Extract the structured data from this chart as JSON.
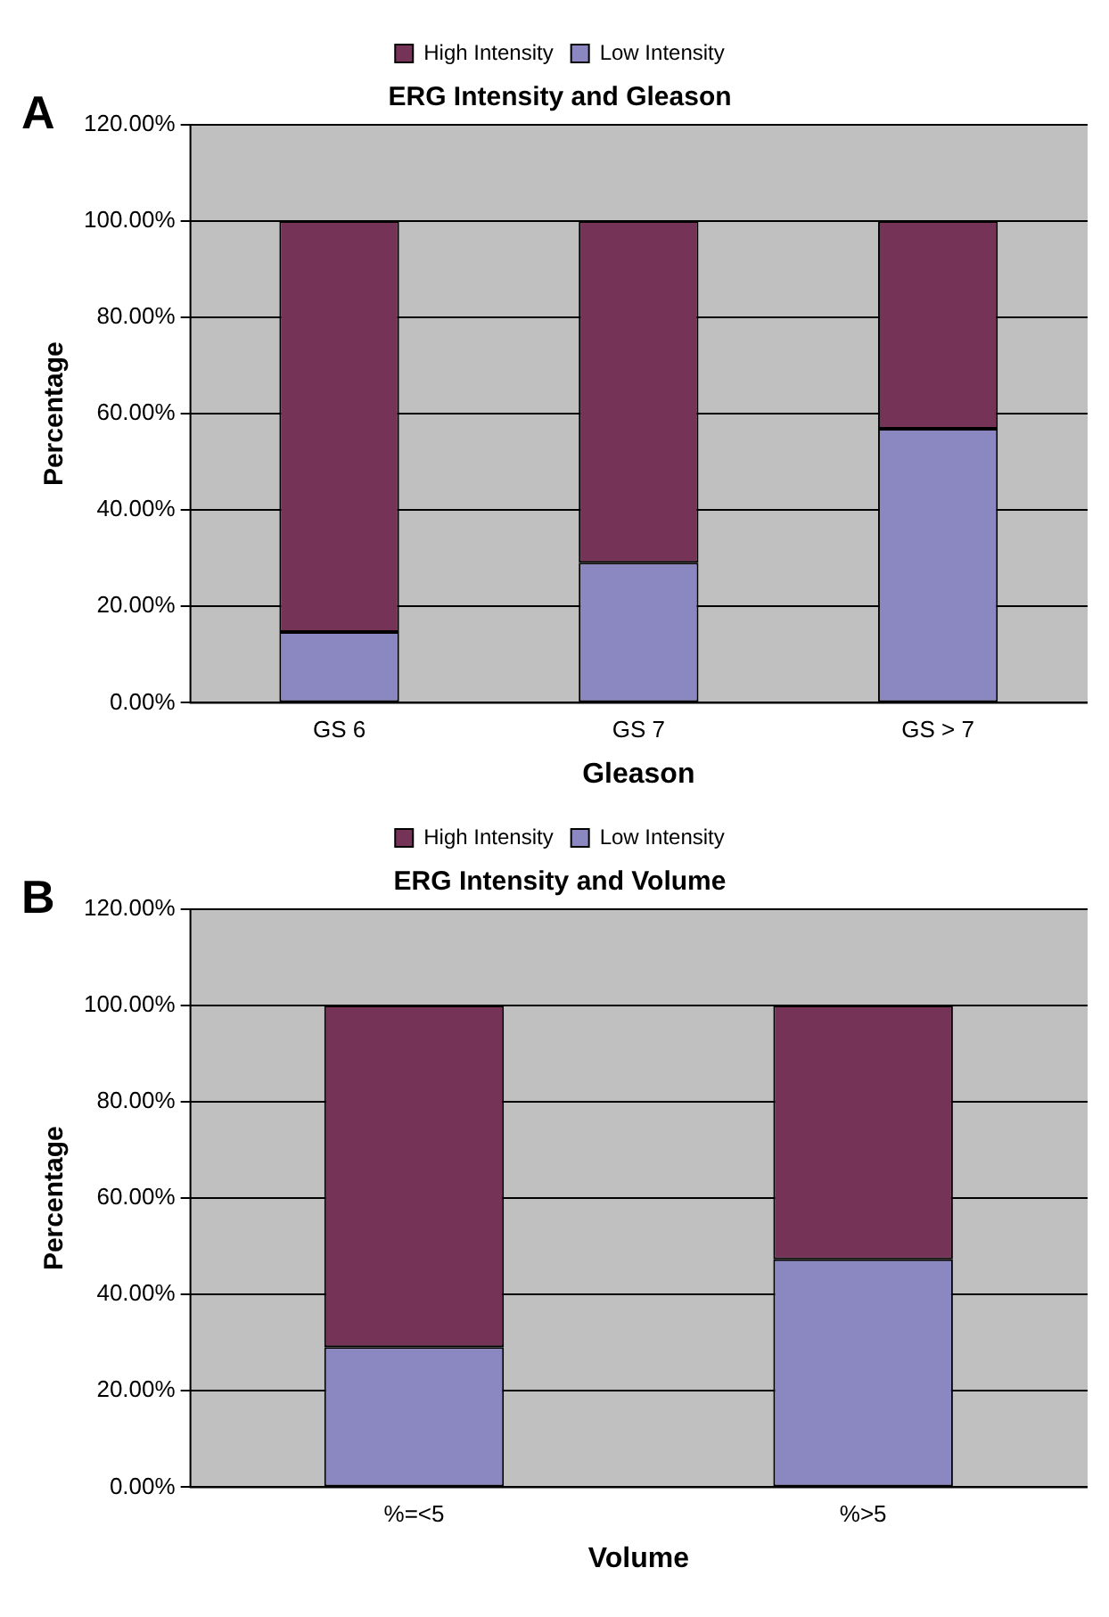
{
  "chart_data": [
    {
      "type": "bar",
      "title": "ERG Intensity and Gleason",
      "xlabel": "Gleason",
      "ylabel": "Percentage",
      "annotations": [
        "A"
      ],
      "categories": [
        "GS 6",
        "GS 7",
        "GS > 7"
      ],
      "stacked": true,
      "series": [
        {
          "name": "Low Intensity",
          "color": "#8b87c0",
          "values": [
            14.7,
            29.1,
            56.9
          ]
        },
        {
          "name": "High Intensity",
          "color": "#743357",
          "values": [
            85.3,
            70.9,
            43.1
          ]
        }
      ],
      "ylim": [
        0,
        120
      ],
      "yticks": [
        {
          "value": 0,
          "label": "0.00%"
        },
        {
          "value": 20,
          "label": "20.00%"
        },
        {
          "value": 40,
          "label": "40.00%"
        },
        {
          "value": 60,
          "label": "60.00%"
        },
        {
          "value": 80,
          "label": "80.00%"
        },
        {
          "value": 100,
          "label": "100.00%"
        },
        {
          "value": 120,
          "label": "120.00%"
        }
      ],
      "grid": "y",
      "legend": "top"
    },
    {
      "type": "bar",
      "title": "ERG Intensity and Volume",
      "xlabel": "Volume",
      "ylabel": "Percentage",
      "annotations": [
        "B"
      ],
      "categories": [
        "%=<5",
        "%>5"
      ],
      "stacked": true,
      "series": [
        {
          "name": "Low Intensity",
          "color": "#8b87c0",
          "values": [
            29.1,
            47.3
          ]
        },
        {
          "name": "High Intensity",
          "color": "#743357",
          "values": [
            70.9,
            52.7
          ]
        }
      ],
      "ylim": [
        0,
        120
      ],
      "yticks": [
        {
          "value": 0,
          "label": "0.00%"
        },
        {
          "value": 20,
          "label": "20.00%"
        },
        {
          "value": 40,
          "label": "40.00%"
        },
        {
          "value": 60,
          "label": "60.00%"
        },
        {
          "value": 80,
          "label": "80.00%"
        },
        {
          "value": 100,
          "label": "100.00%"
        },
        {
          "value": 120,
          "label": "120.00%"
        }
      ],
      "grid": "y",
      "legend": "top"
    }
  ]
}
